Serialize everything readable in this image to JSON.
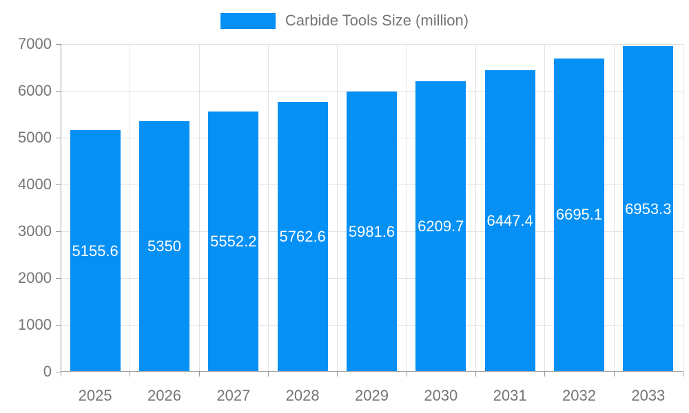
{
  "chart_data": {
    "type": "bar",
    "title": "Carbide Tools Size (million)",
    "legend": {
      "label": "Carbide Tools Size (million)",
      "position": "top-center"
    },
    "categories": [
      "2025",
      "2026",
      "2027",
      "2028",
      "2029",
      "2030",
      "2031",
      "2032",
      "2033"
    ],
    "series": [
      {
        "name": "Carbide Tools Size (million)",
        "values": [
          5155.6,
          5350,
          5552.2,
          5762.6,
          5981.6,
          6209.7,
          6447.4,
          6695.1,
          6953.3
        ],
        "value_labels": [
          "5155.6",
          "5350",
          "5552.2",
          "5762.6",
          "5981.6",
          "6209.7",
          "6447.4",
          "6695.1",
          "6953.3"
        ]
      }
    ],
    "xlabel": "",
    "ylabel": "",
    "ylim": [
      0,
      7000
    ],
    "yticks": [
      0,
      1000,
      2000,
      3000,
      4000,
      5000,
      6000,
      7000
    ],
    "grid": true,
    "legend_position": "top",
    "colors": {
      "bar": "#0590f6",
      "bar_value_label": "#ffffff",
      "axis_text": "#757575",
      "legend_text": "#757575",
      "gridline": "#e3e3e3",
      "axis_line": "#999999",
      "background": "#ffffff"
    }
  }
}
